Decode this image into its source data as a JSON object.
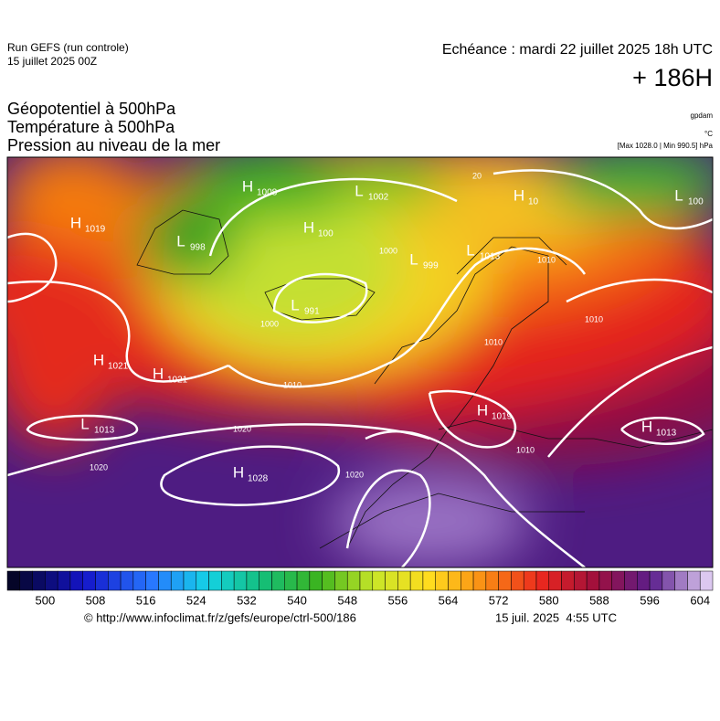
{
  "header": {
    "run": "Run GEFS (run controle)",
    "run_date": "15 juillet 2025 00Z",
    "valid": "Echéance : mardi 22 juillet 2025 18h UTC",
    "lead": "+ 186H",
    "fields": [
      "Géopotentiel à 500hPa",
      "Température à 500hPa",
      "Pression au niveau de la mer"
    ],
    "units": [
      "gpdam",
      "°C",
      "[Max 1028.0 | Min 990.5] hPa"
    ]
  },
  "map": {
    "centers": [
      {
        "kind": "H",
        "label": "1019"
      },
      {
        "kind": "H",
        "label": "1008"
      },
      {
        "kind": "L",
        "label": "1002"
      },
      {
        "kind": "H",
        "label": "100"
      },
      {
        "kind": "H",
        "label": "10"
      },
      {
        "kind": "L",
        "label": "100"
      },
      {
        "kind": "L",
        "label": "998"
      },
      {
        "kind": "L",
        "label": "999"
      },
      {
        "kind": "L",
        "label": "1013"
      },
      {
        "kind": "L",
        "label": "991"
      },
      {
        "kind": "H",
        "label": "1021"
      },
      {
        "kind": "H",
        "label": "1021"
      },
      {
        "kind": "L",
        "label": "1013"
      },
      {
        "kind": "H",
        "label": "1019"
      },
      {
        "kind": "H",
        "label": "1013"
      },
      {
        "kind": "H",
        "label": "1028"
      }
    ],
    "isobar_labels": [
      "1020",
      "1020",
      "1020",
      "1010",
      "1010",
      "1010",
      "1010",
      "1000",
      "1000",
      "1010",
      "20"
    ]
  },
  "colorbar": {
    "range": [
      494,
      606
    ],
    "step": 2,
    "ticks": [
      500,
      508,
      516,
      524,
      532,
      540,
      548,
      556,
      564,
      572,
      580,
      588,
      596,
      604
    ]
  },
  "footer": {
    "source": "© http://www.infoclimat.fr/z/gefs/europe/ctrl-500/186",
    "issued": "15 juil. 2025  4:55 UTC"
  }
}
